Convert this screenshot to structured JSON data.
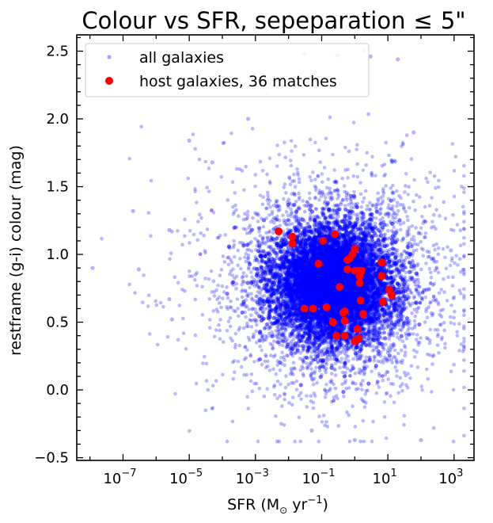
{
  "chart_data": {
    "type": "scatter",
    "title": "Colour vs SFR, sepeparation ≤ 5\"",
    "title_main": "Colour vs SFR, sepeparation",
    "title_symbol": "≤",
    "title_tail": "5\"",
    "xlabel_prefix": "SFR (M",
    "xlabel_sub": "⊙",
    "xlabel_mid": " yr",
    "xlabel_sup": "−1",
    "xlabel_suffix": ")",
    "ylabel": "restframe (g-i) colour (mag)",
    "xscale": "log",
    "xlim": [
      4e-09,
      4000
    ],
    "ylim": [
      -0.52,
      2.62
    ],
    "x_ticks": [
      {
        "exp": -7,
        "label_base": "10",
        "label_exp": "−7"
      },
      {
        "exp": -5,
        "label_base": "10",
        "label_exp": "−5"
      },
      {
        "exp": -3,
        "label_base": "10",
        "label_exp": "−3"
      },
      {
        "exp": -1,
        "label_base": "10",
        "label_exp": "−1"
      },
      {
        "exp": 1,
        "label_base": "10",
        "label_exp": "1"
      },
      {
        "exp": 3,
        "label_base": "10",
        "label_exp": "3"
      }
    ],
    "y_ticks": [
      {
        "value": -0.5,
        "label": "−0.5"
      },
      {
        "value": 0.0,
        "label": "0.0"
      },
      {
        "value": 0.5,
        "label": "0.5"
      },
      {
        "value": 1.0,
        "label": "1.0"
      },
      {
        "value": 1.5,
        "label": "1.5"
      },
      {
        "value": 2.0,
        "label": "2.0"
      },
      {
        "value": 2.5,
        "label": "2.5"
      }
    ],
    "legend": {
      "placement": "upper-left",
      "entries": [
        {
          "label": "all galaxies",
          "color": "#0000ff",
          "marker": "small-circle-translucent"
        },
        {
          "label": "host galaxies, 36 matches",
          "color": "#ff0000",
          "marker": "circle"
        }
      ]
    },
    "series": [
      {
        "name": "all galaxies",
        "color": "#0000ff",
        "note_density": "dense cloud",
        "cloud": {
          "core_logx_range": [
            -3.5,
            2.5
          ],
          "core_y_range": [
            0.0,
            1.3
          ],
          "extent_logx": [
            -8.2,
            3.3
          ],
          "extent_y": [
            -0.38,
            2.5
          ]
        },
        "points": [
          {
            "x": 1.2e-08,
            "y": 0.9
          },
          {
            "x": 2e-07,
            "y": 1.32
          },
          {
            "x": 3e-07,
            "y": 0.89
          },
          {
            "x": 2.5e-06,
            "y": 1.18
          },
          {
            "x": 2.5e-06,
            "y": 0.67
          },
          {
            "x": 3e-06,
            "y": 0.52
          },
          {
            "x": 1e-05,
            "y": 1.84
          },
          {
            "x": 5e-05,
            "y": 1.68
          },
          {
            "x": 0.0006,
            "y": 2.0
          },
          {
            "x": 0.03,
            "y": 2.48
          },
          {
            "x": 0.3,
            "y": 2.47
          },
          {
            "x": 3.0,
            "y": 2.46
          },
          {
            "x": 20.0,
            "y": 2.44
          },
          {
            "x": 60.0,
            "y": 1.9
          },
          {
            "x": 800.0,
            "y": 1.03
          },
          {
            "x": 1.0,
            "y": -0.37
          },
          {
            "x": 0.05,
            "y": -0.3
          },
          {
            "x": 100.0,
            "y": -0.37
          }
        ]
      },
      {
        "name": "host galaxies, 36 matches",
        "color": "#ff0000",
        "points": [
          {
            "x": 0.005,
            "y": 1.17
          },
          {
            "x": 0.013,
            "y": 1.13
          },
          {
            "x": 0.013,
            "y": 1.08
          },
          {
            "x": 0.11,
            "y": 1.1
          },
          {
            "x": 0.25,
            "y": 1.15
          },
          {
            "x": 0.08,
            "y": 0.93
          },
          {
            "x": 0.6,
            "y": 0.96
          },
          {
            "x": 0.7,
            "y": 0.97
          },
          {
            "x": 0.85,
            "y": 1.0
          },
          {
            "x": 1.0,
            "y": 1.04
          },
          {
            "x": 0.6,
            "y": 0.89
          },
          {
            "x": 1.0,
            "y": 0.88
          },
          {
            "x": 1.3,
            "y": 0.88
          },
          {
            "x": 1.6,
            "y": 0.88
          },
          {
            "x": 1.4,
            "y": 0.84
          },
          {
            "x": 1.4,
            "y": 0.79
          },
          {
            "x": 6.5,
            "y": 0.94
          },
          {
            "x": 6.5,
            "y": 0.84
          },
          {
            "x": 0.35,
            "y": 0.76
          },
          {
            "x": 11.0,
            "y": 0.74
          },
          {
            "x": 13.0,
            "y": 0.7
          },
          {
            "x": 1.5,
            "y": 0.66
          },
          {
            "x": 7.0,
            "y": 0.65
          },
          {
            "x": 0.03,
            "y": 0.6
          },
          {
            "x": 0.055,
            "y": 0.6
          },
          {
            "x": 0.14,
            "y": 0.61
          },
          {
            "x": 0.45,
            "y": 0.57
          },
          {
            "x": 0.5,
            "y": 0.58
          },
          {
            "x": 1.8,
            "y": 0.56
          },
          {
            "x": 0.22,
            "y": 0.5
          },
          {
            "x": 0.5,
            "y": 0.51
          },
          {
            "x": 1.2,
            "y": 0.45
          },
          {
            "x": 0.28,
            "y": 0.4
          },
          {
            "x": 0.5,
            "y": 0.4
          },
          {
            "x": 1.3,
            "y": 0.38
          },
          {
            "x": 1.0,
            "y": 0.36
          }
        ]
      }
    ]
  }
}
